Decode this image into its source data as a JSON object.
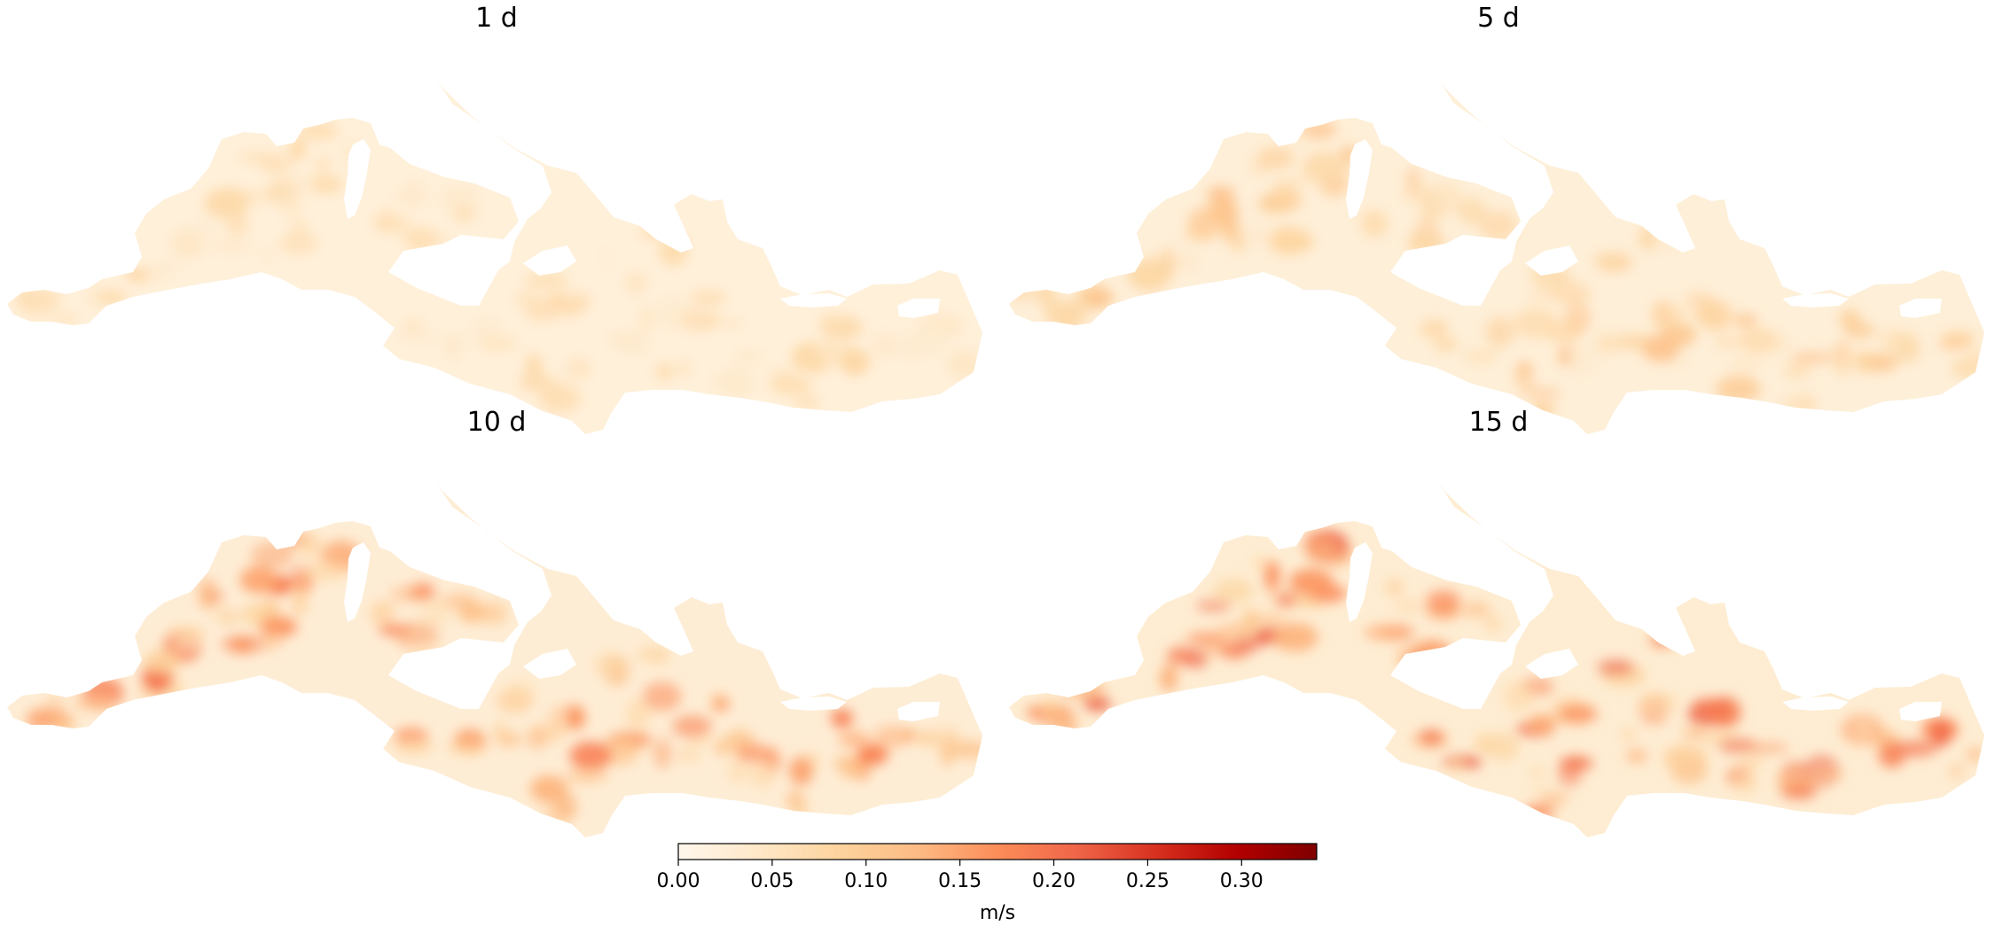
{
  "chart_data": {
    "type": "heatmap",
    "panels": [
      {
        "title": "1 d",
        "intensity": 0.28
      },
      {
        "title": "5 d",
        "intensity": 0.45
      },
      {
        "title": "10 d",
        "intensity": 0.78
      },
      {
        "title": "15 d",
        "intensity": 0.88
      }
    ],
    "colorbar": {
      "label": "m/s",
      "vmin": 0.0,
      "vmax": 0.34,
      "ticks": [
        0.0,
        0.05,
        0.1,
        0.15,
        0.2,
        0.25,
        0.3
      ],
      "tick_labels": [
        "0.00",
        "0.05",
        "0.10",
        "0.15",
        "0.20",
        "0.25",
        "0.30"
      ],
      "colormap": "OrRd",
      "colors": [
        "#fff7ec",
        "#fee8c8",
        "#fdd49e",
        "#fdbb84",
        "#fc8d59",
        "#ef6548",
        "#d7301f",
        "#b30000",
        "#7f0000"
      ]
    }
  }
}
